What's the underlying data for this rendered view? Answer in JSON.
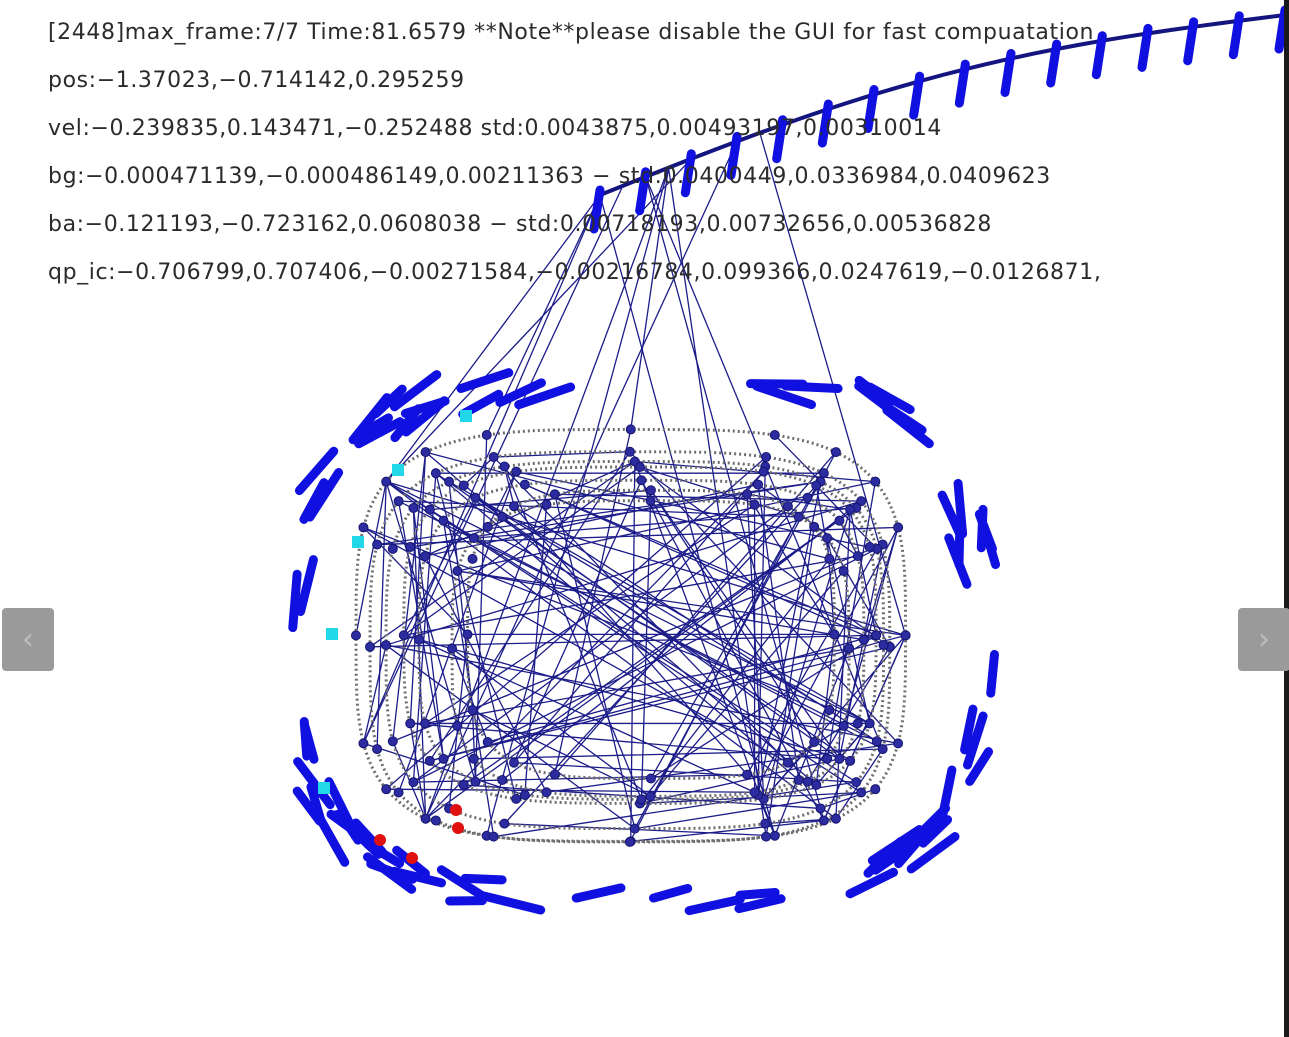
{
  "hud": {
    "line1": "[2448]max_frame:7/7 Time:81.6579 **Note**please disable the GUI for fast compuatation",
    "line2": "pos:−1.37023,−0.714142,0.295259",
    "line3": "vel:−0.239835,0.143471,−0.252488 std:0.0043875,0.00493197,0.00310014",
    "line4": "bg:−0.000471139,−0.000486149,0.00211363 − std:0.0400449,0.0336984,0.0409623",
    "line5": "ba:−0.121193,−0.723162,0.0608038 − std:0.00718193,0.00732656,0.00536828",
    "line6": "qp_ic:−0.706799,0.707406,−0.00271584,−0.00216784,0.099366,0.0247619,−0.0126871,"
  },
  "nav": {
    "prev_glyph": "‹",
    "next_glyph": "›"
  },
  "colors": {
    "trajectory": "#6e6e6e",
    "constraint_edge": "#1c1c8a",
    "pose_marker": "#1010e0",
    "keyframe_cyan": "#22d8e8",
    "current_red": "#e01010"
  }
}
